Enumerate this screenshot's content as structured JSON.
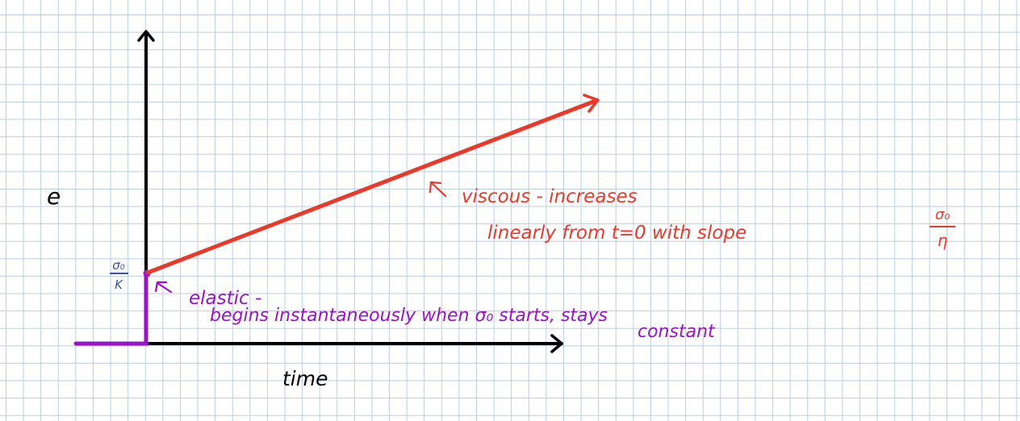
{
  "diagram": {
    "axes": {
      "y_label": "e",
      "x_label": "time"
    },
    "elastic": {
      "level_label_top": "σ₀",
      "level_label_bottom": "K",
      "note_line1": "elastic -",
      "note_line2": "begins instantaneously when σ₀ starts, stays",
      "note_line3": "constant",
      "color": "#9b12c9"
    },
    "viscous": {
      "note_line1": "viscous - increases",
      "note_line2": "linearly from t=0 with slope",
      "slope_top": "σ₀",
      "slope_bottom": "η",
      "color": "#e8392b"
    },
    "axis_color": "#000000",
    "level_label_color": "#3a4fb0"
  }
}
